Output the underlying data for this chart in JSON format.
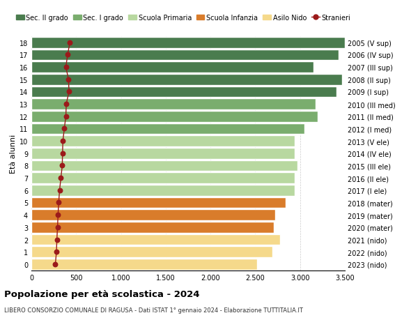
{
  "ages": [
    18,
    17,
    16,
    15,
    14,
    13,
    12,
    11,
    10,
    9,
    8,
    7,
    6,
    5,
    4,
    3,
    2,
    1,
    0
  ],
  "right_labels": [
    "2005 (V sup)",
    "2006 (IV sup)",
    "2007 (III sup)",
    "2008 (II sup)",
    "2009 (I sup)",
    "2010 (III med)",
    "2011 (II med)",
    "2012 (I med)",
    "2013 (V ele)",
    "2014 (IV ele)",
    "2015 (III ele)",
    "2016 (II ele)",
    "2017 (I ele)",
    "2018 (mater)",
    "2019 (mater)",
    "2020 (mater)",
    "2021 (nido)",
    "2022 (nido)",
    "2023 (nido)"
  ],
  "bar_values": [
    3500,
    3430,
    3150,
    3470,
    3410,
    3170,
    3200,
    3050,
    2940,
    2940,
    2970,
    2940,
    2940,
    2840,
    2720,
    2710,
    2780,
    2690,
    2520
  ],
  "bar_colors": [
    "#4a7c4e",
    "#4a7c4e",
    "#4a7c4e",
    "#4a7c4e",
    "#4a7c4e",
    "#7aad6e",
    "#7aad6e",
    "#7aad6e",
    "#b8d8a0",
    "#b8d8a0",
    "#b8d8a0",
    "#b8d8a0",
    "#b8d8a0",
    "#d97c2b",
    "#d97c2b",
    "#d97c2b",
    "#f5d98b",
    "#f5d98b",
    "#f5d98b"
  ],
  "stranieri_values": [
    430,
    405,
    385,
    415,
    420,
    390,
    385,
    368,
    352,
    348,
    345,
    330,
    315,
    305,
    298,
    292,
    285,
    280,
    268
  ],
  "title": "Popolazione per età scolastica - 2024",
  "subtitle": "LIBERO CONSORZIO COMUNALE DI RAGUSA - Dati ISTAT 1° gennaio 2024 - Elaborazione TUTTITALIA.IT",
  "ylabel": "Età alunni",
  "xlim": [
    0,
    3500
  ],
  "xticks": [
    0,
    500,
    1000,
    1500,
    2000,
    2500,
    3000,
    3500
  ],
  "legend_items": [
    {
      "label": "Sec. II grado",
      "color": "#4a7c4e"
    },
    {
      "label": "Sec. I grado",
      "color": "#7aad6e"
    },
    {
      "label": "Scuola Primaria",
      "color": "#b8d8a0"
    },
    {
      "label": "Scuola Infanzia",
      "color": "#d97c2b"
    },
    {
      "label": "Asilo Nido",
      "color": "#f5d98b"
    },
    {
      "label": "Stranieri",
      "color": "#9b1a1a"
    }
  ],
  "background_color": "#ffffff",
  "bar_edge_color": "#ffffff",
  "grid_color": "#cccccc"
}
